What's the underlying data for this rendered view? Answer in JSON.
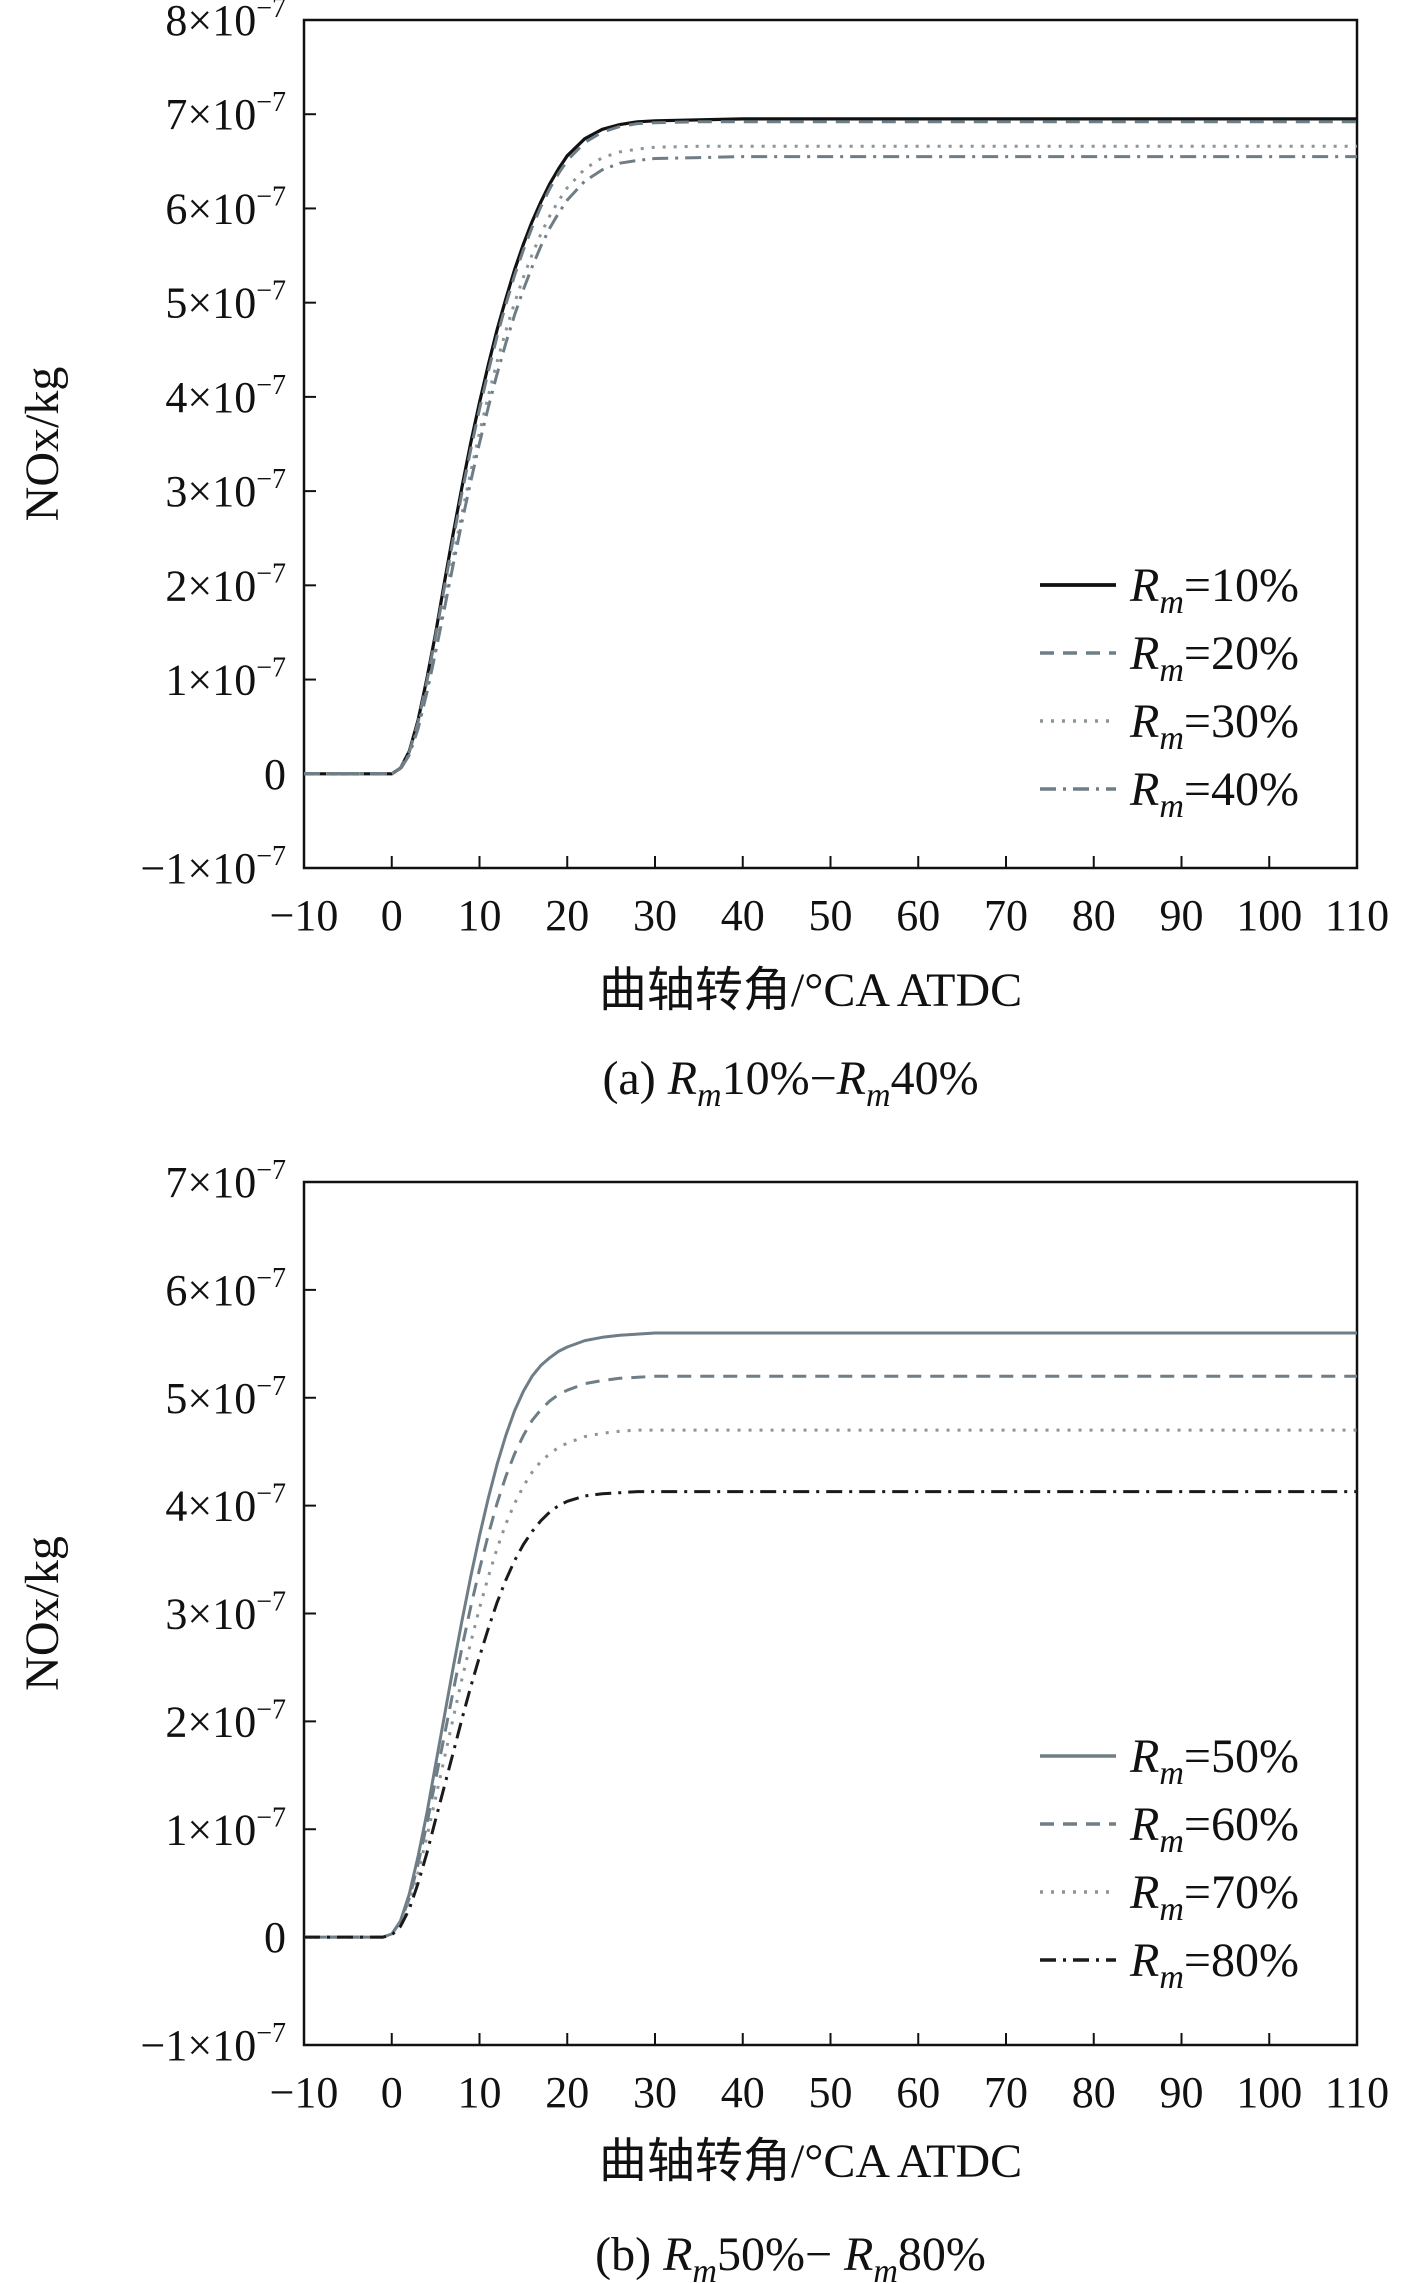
{
  "chart_data": [
    {
      "type": "line",
      "panel": "a",
      "caption": {
        "prefix": "(a) ",
        "r": "R",
        "m": "m",
        "from": "10%",
        "dash": "−",
        "to": "40%"
      },
      "xlabel": "曲轴转角/°CA ATDC",
      "ylabel": "NOx/kg",
      "xlim": [
        -10,
        110
      ],
      "ylim": [
        -1e-07,
        8e-07
      ],
      "x_ticks": [
        -10,
        0,
        10,
        20,
        30,
        40,
        50,
        60,
        70,
        80,
        90,
        100,
        110
      ],
      "y_ticks": [
        {
          "value": 8e-07,
          "mant": "8",
          "exp": "−7"
        },
        {
          "value": 7e-07,
          "mant": "7",
          "exp": "−7"
        },
        {
          "value": 6e-07,
          "mant": "6",
          "exp": "−7"
        },
        {
          "value": 5e-07,
          "mant": "5",
          "exp": "−7"
        },
        {
          "value": 4e-07,
          "mant": "4",
          "exp": "−7"
        },
        {
          "value": 3e-07,
          "mant": "3",
          "exp": "−7"
        },
        {
          "value": 2e-07,
          "mant": "2",
          "exp": "−7"
        },
        {
          "value": 1e-07,
          "mant": "1",
          "exp": "−7"
        },
        {
          "value": 0,
          "mant": "0",
          "exp": ""
        },
        {
          "value": -1e-07,
          "mant": "−1",
          "exp": "−7"
        }
      ],
      "legend_position": "lower-right",
      "series": [
        {
          "name": "=10%",
          "label_r": "R",
          "label_m": "m",
          "color": "#111111",
          "dash": "",
          "width": 3.2,
          "x": [
            -10,
            -3,
            0,
            1,
            2,
            3,
            4,
            5,
            6,
            7,
            8,
            9,
            10,
            11,
            12,
            13,
            14,
            15,
            16,
            17,
            18,
            19,
            20,
            22,
            24,
            26,
            28,
            30,
            35,
            40,
            60,
            80,
            110
          ],
          "y": [
            0,
            0,
            0,
            6e-09,
            2.4e-08,
            5.7e-08,
            1.01e-07,
            1.49e-07,
            2.03e-07,
            2.55e-07,
            3.04e-07,
            3.51e-07,
            3.94e-07,
            4.34e-07,
            4.71e-07,
            5.04e-07,
            5.35e-07,
            5.62e-07,
            5.86e-07,
            6.07e-07,
            6.26e-07,
            6.42e-07,
            6.56e-07,
            6.74e-07,
            6.84e-07,
            6.89e-07,
            6.92e-07,
            6.93e-07,
            6.94e-07,
            6.95e-07,
            6.95e-07,
            6.95e-07,
            6.95e-07
          ]
        },
        {
          "name": "=20%",
          "label_r": "R",
          "label_m": "m",
          "color": "#6f7d86",
          "dash": "14,9",
          "width": 3,
          "x": [
            -10,
            -3,
            0,
            1,
            2,
            3,
            4,
            5,
            6,
            7,
            8,
            9,
            10,
            11,
            12,
            13,
            14,
            15,
            16,
            17,
            18,
            19,
            20,
            22,
            24,
            26,
            28,
            30,
            35,
            40,
            60,
            80,
            110
          ],
          "y": [
            0,
            0,
            0,
            6e-09,
            2.3e-08,
            5.5e-08,
            9.8e-08,
            1.46e-07,
            1.98e-07,
            2.49e-07,
            2.98e-07,
            3.44e-07,
            3.87e-07,
            4.27e-07,
            4.64e-07,
            4.98e-07,
            5.29e-07,
            5.56e-07,
            5.8e-07,
            6.02e-07,
            6.21e-07,
            6.37e-07,
            6.51e-07,
            6.7e-07,
            6.81e-07,
            6.87e-07,
            6.9e-07,
            6.91e-07,
            6.92e-07,
            6.92e-07,
            6.92e-07,
            6.92e-07,
            6.92e-07
          ]
        },
        {
          "name": "=30%",
          "label_r": "R",
          "label_m": "m",
          "color": "#8a9499",
          "dash": "3,8",
          "width": 3,
          "x": [
            -10,
            -3,
            0,
            1,
            2,
            3,
            4,
            5,
            6,
            7,
            8,
            9,
            10,
            11,
            12,
            13,
            14,
            15,
            16,
            17,
            18,
            19,
            20,
            22,
            24,
            26,
            28,
            30,
            35,
            40,
            60,
            80,
            110
          ],
          "y": [
            0,
            0,
            0,
            5e-09,
            2.1e-08,
            5e-08,
            8.9e-08,
            1.33e-07,
            1.81e-07,
            2.3e-07,
            2.76e-07,
            3.2e-07,
            3.62e-07,
            4.01e-07,
            4.37e-07,
            4.7e-07,
            5e-07,
            5.27e-07,
            5.51e-07,
            5.73e-07,
            5.92e-07,
            6.08e-07,
            6.22e-07,
            6.42e-07,
            6.54e-07,
            6.6e-07,
            6.63e-07,
            6.65e-07,
            6.66e-07,
            6.66e-07,
            6.66e-07,
            6.66e-07,
            6.66e-07
          ]
        },
        {
          "name": "=40%",
          "label_r": "R",
          "label_m": "m",
          "color": "#6f7d86",
          "dash": "16,7,3,7",
          "width": 3,
          "x": [
            -10,
            -3,
            0,
            1,
            2,
            3,
            4,
            5,
            6,
            7,
            8,
            9,
            10,
            11,
            12,
            13,
            14,
            15,
            16,
            17,
            18,
            19,
            20,
            22,
            24,
            26,
            28,
            30,
            35,
            40,
            60,
            80,
            110
          ],
          "y": [
            0,
            0,
            0,
            5e-09,
            2e-08,
            4.8e-08,
            8.6e-08,
            1.29e-07,
            1.75e-07,
            2.22e-07,
            2.67e-07,
            3.1e-07,
            3.51e-07,
            3.89e-07,
            4.24e-07,
            4.57e-07,
            4.87e-07,
            5.14e-07,
            5.38e-07,
            5.6e-07,
            5.79e-07,
            5.95e-07,
            6.09e-07,
            6.29e-07,
            6.41e-07,
            6.48e-07,
            6.51e-07,
            6.53e-07,
            6.54e-07,
            6.55e-07,
            6.55e-07,
            6.55e-07,
            6.55e-07
          ]
        }
      ]
    },
    {
      "type": "line",
      "panel": "b",
      "caption": {
        "prefix": "(b) ",
        "r": "R",
        "m": "m",
        "from": "50%",
        "dash": "− ",
        "to": "80%"
      },
      "xlabel": "曲轴转角/°CA ATDC",
      "ylabel": "NOx/kg",
      "xlim": [
        -10,
        110
      ],
      "ylim": [
        -1e-07,
        7e-07
      ],
      "x_ticks": [
        -10,
        0,
        10,
        20,
        30,
        40,
        50,
        60,
        70,
        80,
        90,
        100,
        110
      ],
      "y_ticks": [
        {
          "value": 7e-07,
          "mant": "7",
          "exp": "−7"
        },
        {
          "value": 6e-07,
          "mant": "6",
          "exp": "−7"
        },
        {
          "value": 5e-07,
          "mant": "5",
          "exp": "−7"
        },
        {
          "value": 4e-07,
          "mant": "4",
          "exp": "−7"
        },
        {
          "value": 3e-07,
          "mant": "3",
          "exp": "−7"
        },
        {
          "value": 2e-07,
          "mant": "2",
          "exp": "−7"
        },
        {
          "value": 1e-07,
          "mant": "1",
          "exp": "−7"
        },
        {
          "value": 0,
          "mant": "0",
          "exp": ""
        },
        {
          "value": -1e-07,
          "mant": "−1",
          "exp": "−7"
        }
      ],
      "legend_position": "lower-right",
      "series": [
        {
          "name": "=50%",
          "label_r": "R",
          "label_m": "m",
          "color": "#6f7d86",
          "dash": "",
          "width": 3,
          "x": [
            -10,
            -3,
            -1,
            0,
            1,
            2,
            3,
            4,
            5,
            6,
            7,
            8,
            9,
            10,
            11,
            12,
            13,
            14,
            15,
            16,
            17,
            18,
            19,
            20,
            22,
            24,
            26,
            28,
            30,
            35,
            40,
            60,
            80,
            110
          ],
          "y": [
            0,
            0,
            0,
            3e-09,
            1.5e-08,
            4e-08,
            7.5e-08,
            1.15e-07,
            1.6e-07,
            2.05e-07,
            2.5e-07,
            2.93e-07,
            3.34e-07,
            3.72e-07,
            4.07e-07,
            4.38e-07,
            4.65e-07,
            4.88e-07,
            5.06e-07,
            5.2e-07,
            5.3e-07,
            5.37e-07,
            5.43e-07,
            5.47e-07,
            5.53e-07,
            5.56e-07,
            5.58e-07,
            5.59e-07,
            5.6e-07,
            5.6e-07,
            5.6e-07,
            5.6e-07,
            5.6e-07,
            5.6e-07
          ]
        },
        {
          "name": "=60%",
          "label_r": "R",
          "label_m": "m",
          "color": "#6f7d86",
          "dash": "14,9",
          "width": 3,
          "x": [
            -10,
            -3,
            -1,
            0,
            1,
            2,
            3,
            4,
            5,
            6,
            7,
            8,
            9,
            10,
            11,
            12,
            13,
            14,
            15,
            16,
            17,
            18,
            19,
            20,
            22,
            24,
            26,
            28,
            30,
            35,
            40,
            60,
            80,
            110
          ],
          "y": [
            0,
            0,
            0,
            3e-09,
            1.4e-08,
            3.6e-08,
            6.8e-08,
            1.05e-07,
            1.46e-07,
            1.87e-07,
            2.28e-07,
            2.68e-07,
            3.06e-07,
            3.41e-07,
            3.73e-07,
            4.02e-07,
            4.27e-07,
            4.48e-07,
            4.65e-07,
            4.79e-07,
            4.89e-07,
            4.97e-07,
            5.03e-07,
            5.07e-07,
            5.13e-07,
            5.16e-07,
            5.18e-07,
            5.19e-07,
            5.2e-07,
            5.2e-07,
            5.2e-07,
            5.2e-07,
            5.2e-07,
            5.2e-07
          ]
        },
        {
          "name": "=70%",
          "label_r": "R",
          "label_m": "m",
          "color": "#8a9499",
          "dash": "3,8",
          "width": 3,
          "x": [
            -10,
            -3,
            -1,
            0,
            1,
            2,
            3,
            4,
            5,
            6,
            7,
            8,
            9,
            10,
            11,
            12,
            13,
            14,
            15,
            16,
            17,
            18,
            19,
            20,
            22,
            24,
            26,
            28,
            30,
            35,
            40,
            60,
            80,
            110
          ],
          "y": [
            0,
            0,
            0,
            3e-09,
            1.2e-08,
            3.2e-08,
            6e-08,
            9.3e-08,
            1.29e-07,
            1.66e-07,
            2.03e-07,
            2.39e-07,
            2.73e-07,
            3.05e-07,
            3.34e-07,
            3.6e-07,
            3.83e-07,
            4.02e-07,
            4.18e-07,
            4.31e-07,
            4.41e-07,
            4.48e-07,
            4.54e-07,
            4.58e-07,
            4.64e-07,
            4.67e-07,
            4.69e-07,
            4.7e-07,
            4.7e-07,
            4.7e-07,
            4.7e-07,
            4.7e-07,
            4.7e-07,
            4.7e-07
          ]
        },
        {
          "name": "=80%",
          "label_r": "R",
          "label_m": "m",
          "color": "#1a1a1a",
          "dash": "16,7,3,7",
          "width": 3,
          "x": [
            -10,
            -3,
            -1,
            0,
            1,
            2,
            3,
            4,
            5,
            6,
            7,
            8,
            9,
            10,
            11,
            12,
            13,
            14,
            15,
            16,
            17,
            18,
            19,
            20,
            22,
            24,
            26,
            28,
            30,
            35,
            40,
            60,
            80,
            110
          ],
          "y": [
            0,
            0,
            0,
            2e-09,
            1e-08,
            2.6e-08,
            5e-08,
            7.8e-08,
            1.09e-07,
            1.4e-07,
            1.71e-07,
            2.02e-07,
            2.32e-07,
            2.6e-07,
            2.86e-07,
            3.1e-07,
            3.31e-07,
            3.49e-07,
            3.64e-07,
            3.76e-07,
            3.86e-07,
            3.94e-07,
            4e-07,
            4.04e-07,
            4.09e-07,
            4.11e-07,
            4.12e-07,
            4.13e-07,
            4.13e-07,
            4.13e-07,
            4.13e-07,
            4.13e-07,
            4.13e-07,
            4.13e-07
          ]
        }
      ]
    }
  ]
}
